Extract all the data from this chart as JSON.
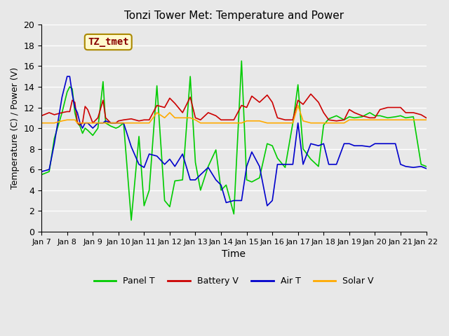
{
  "title": "Tonzi Tower Met: Temperature and Power",
  "xlabel": "Time",
  "ylabel": "Temperature (C) / Power (V)",
  "ylim": [
    0,
    20
  ],
  "xlim": [
    0,
    15
  ],
  "x_tick_labels": [
    "Jan 7",
    "Jan 8",
    "Jan 9",
    "Jan 10",
    "Jan 11",
    "Jan 12",
    "Jan 13",
    "Jan 14",
    "Jan 15",
    "Jan 16",
    "Jan 17",
    "Jan 18",
    "Jan 19",
    "Jan 20",
    "Jan 21",
    "Jan 22"
  ],
  "annotation_text": "TZ_tmet",
  "annotation_box_facecolor": "#FFFACD",
  "annotation_box_edgecolor": "#AA8800",
  "annotation_text_color": "#880000",
  "background_color": "#E8E8E8",
  "plot_bg_color": "#E8E8E8",
  "grid_color": "#FFFFFF",
  "series": {
    "panel_t": {
      "label": "Panel T",
      "color": "#00CC00",
      "lw": 1.2
    },
    "battery_v": {
      "label": "Battery V",
      "color": "#CC0000",
      "lw": 1.2
    },
    "air_t": {
      "label": "Air T",
      "color": "#0000CC",
      "lw": 1.2
    },
    "solar_v": {
      "label": "Solar V",
      "color": "#FFAA00",
      "lw": 1.2
    }
  },
  "panel_t_x": [
    0,
    0.3,
    0.5,
    0.8,
    1.0,
    1.1,
    1.2,
    1.3,
    1.4,
    1.5,
    1.6,
    1.7,
    1.8,
    2.0,
    2.2,
    2.4,
    2.5,
    2.7,
    2.9,
    3.0,
    3.2,
    3.5,
    3.8,
    4.0,
    4.2,
    4.5,
    4.8,
    5.0,
    5.2,
    5.5,
    5.8,
    6.0,
    6.2,
    6.5,
    6.8,
    7.0,
    7.2,
    7.5,
    7.8,
    8.0,
    8.2,
    8.5,
    8.8,
    9.0,
    9.2,
    9.5,
    9.8,
    10.0,
    10.2,
    10.5,
    10.8,
    11.0,
    11.2,
    11.5,
    11.8,
    12.0,
    12.2,
    12.5,
    12.8,
    13.0,
    13.2,
    13.5,
    13.8,
    14.0,
    14.2,
    14.5,
    14.8,
    15.0
  ],
  "panel_t_y": [
    5.5,
    5.8,
    9.0,
    11.5,
    13.5,
    14.0,
    13.8,
    11.5,
    10.5,
    10.2,
    9.5,
    10.0,
    9.8,
    9.3,
    10.0,
    14.5,
    10.5,
    10.2,
    10.0,
    10.1,
    10.5,
    1.1,
    9.2,
    2.5,
    4.0,
    14.1,
    3.0,
    2.4,
    4.9,
    5.0,
    15.0,
    6.7,
    4.0,
    6.3,
    7.9,
    4.0,
    4.5,
    1.7,
    16.5,
    5.0,
    4.8,
    5.2,
    8.5,
    8.3,
    7.1,
    6.2,
    10.5,
    14.2,
    8.0,
    7.0,
    6.3,
    10.3,
    10.9,
    11.2,
    10.8,
    11.1,
    11.0,
    11.1,
    11.5,
    11.2,
    11.2,
    11.0,
    11.1,
    11.2,
    11.0,
    11.1,
    6.5,
    6.3
  ],
  "battery_v_x": [
    0,
    0.3,
    0.5,
    0.8,
    1.0,
    1.1,
    1.2,
    1.3,
    1.4,
    1.5,
    1.6,
    1.7,
    1.8,
    2.0,
    2.2,
    2.4,
    2.5,
    2.7,
    2.9,
    3.0,
    3.2,
    3.5,
    3.8,
    4.0,
    4.2,
    4.5,
    4.8,
    5.0,
    5.2,
    5.5,
    5.8,
    6.0,
    6.2,
    6.5,
    6.8,
    7.0,
    7.2,
    7.5,
    7.8,
    8.0,
    8.2,
    8.5,
    8.8,
    9.0,
    9.2,
    9.5,
    9.8,
    10.0,
    10.2,
    10.5,
    10.8,
    11.0,
    11.2,
    11.5,
    11.8,
    12.0,
    12.2,
    12.5,
    12.8,
    13.0,
    13.2,
    13.5,
    13.8,
    14.0,
    14.2,
    14.5,
    14.8,
    15.0
  ],
  "battery_v_y": [
    11.2,
    11.5,
    11.3,
    11.5,
    11.6,
    11.6,
    12.7,
    12.5,
    10.5,
    10.3,
    10.5,
    12.1,
    11.8,
    10.5,
    11.0,
    12.7,
    11.0,
    10.5,
    10.5,
    10.7,
    10.8,
    10.9,
    10.7,
    10.8,
    10.8,
    12.2,
    12.0,
    12.9,
    12.4,
    11.5,
    13.0,
    11.0,
    10.8,
    11.5,
    11.2,
    10.8,
    10.8,
    10.8,
    12.2,
    12.0,
    13.1,
    12.5,
    13.2,
    12.5,
    11.0,
    10.8,
    10.8,
    12.7,
    12.3,
    13.3,
    12.5,
    11.5,
    10.8,
    10.7,
    10.8,
    11.8,
    11.5,
    11.2,
    11.0,
    11.0,
    11.8,
    12.0,
    12.0,
    12.0,
    11.5,
    11.5,
    11.3,
    11.0
  ],
  "air_t_x": [
    0,
    0.3,
    0.5,
    0.8,
    1.0,
    1.1,
    1.2,
    1.3,
    1.4,
    1.5,
    1.6,
    1.7,
    1.8,
    2.0,
    2.2,
    2.4,
    2.5,
    2.7,
    2.9,
    3.0,
    3.2,
    3.5,
    3.8,
    4.0,
    4.2,
    4.5,
    4.8,
    5.0,
    5.2,
    5.5,
    5.8,
    6.0,
    6.2,
    6.5,
    6.8,
    7.0,
    7.2,
    7.5,
    7.8,
    8.0,
    8.2,
    8.5,
    8.8,
    9.0,
    9.2,
    9.5,
    9.8,
    10.0,
    10.2,
    10.5,
    10.8,
    11.0,
    11.2,
    11.5,
    11.8,
    12.0,
    12.2,
    12.5,
    12.8,
    13.0,
    13.2,
    13.5,
    13.8,
    14.0,
    14.2,
    14.5,
    14.8,
    15.0
  ],
  "air_t_y": [
    5.8,
    6.0,
    8.5,
    13.0,
    15.0,
    15.0,
    13.3,
    12.0,
    11.5,
    10.5,
    10.0,
    10.5,
    10.5,
    10.0,
    10.5,
    10.5,
    10.7,
    10.5,
    10.5,
    10.5,
    10.5,
    8.2,
    6.5,
    6.2,
    7.5,
    7.3,
    6.5,
    7.0,
    6.3,
    7.5,
    5.0,
    5.0,
    5.5,
    6.2,
    5.0,
    4.5,
    2.8,
    3.0,
    3.0,
    6.3,
    7.7,
    6.3,
    2.5,
    3.0,
    6.5,
    6.5,
    6.5,
    10.5,
    6.5,
    8.5,
    8.3,
    8.5,
    6.5,
    6.5,
    8.5,
    8.5,
    8.3,
    8.3,
    8.2,
    8.5,
    8.5,
    8.5,
    8.5,
    6.5,
    6.3,
    6.2,
    6.3,
    6.1
  ],
  "solar_v_x": [
    0,
    0.3,
    0.5,
    0.8,
    1.0,
    1.1,
    1.2,
    1.3,
    1.4,
    1.5,
    1.6,
    1.7,
    1.8,
    2.0,
    2.2,
    2.4,
    2.5,
    2.7,
    2.9,
    3.0,
    3.2,
    3.5,
    3.8,
    4.0,
    4.2,
    4.5,
    4.8,
    5.0,
    5.2,
    5.5,
    5.8,
    6.0,
    6.2,
    6.5,
    6.8,
    7.0,
    7.2,
    7.5,
    7.8,
    8.0,
    8.2,
    8.5,
    8.8,
    9.0,
    9.2,
    9.5,
    9.8,
    10.0,
    10.2,
    10.5,
    10.8,
    11.0,
    11.2,
    11.5,
    11.8,
    12.0,
    12.2,
    12.5,
    12.8,
    13.0,
    13.2,
    13.5,
    13.8,
    14.0,
    14.2,
    14.5,
    14.8,
    15.0
  ],
  "solar_v_y": [
    10.5,
    10.5,
    10.5,
    10.7,
    10.8,
    10.8,
    10.8,
    10.8,
    10.5,
    10.5,
    10.5,
    10.5,
    10.5,
    10.5,
    10.5,
    10.5,
    10.5,
    10.5,
    10.5,
    10.5,
    10.5,
    10.5,
    10.5,
    10.5,
    10.5,
    11.5,
    11.0,
    11.5,
    11.0,
    11.0,
    11.0,
    10.8,
    10.5,
    10.5,
    10.5,
    10.5,
    10.5,
    10.5,
    10.5,
    10.7,
    10.7,
    10.7,
    10.5,
    10.5,
    10.5,
    10.5,
    10.5,
    12.2,
    10.7,
    10.5,
    10.5,
    10.5,
    10.5,
    10.5,
    10.5,
    10.8,
    10.8,
    10.8,
    10.8,
    10.8,
    10.8,
    10.8,
    10.8,
    10.8,
    10.8,
    10.8,
    10.8,
    10.8
  ]
}
